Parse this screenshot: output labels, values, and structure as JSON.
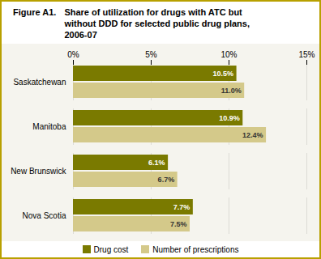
{
  "chart_data": {
    "type": "bar",
    "orientation": "horizontal",
    "title": "Figure A1.",
    "subtitle": "Share of utilization for drugs with ATC but\nwithout DDD for selected public drug plans,\n2006-07",
    "categories": [
      "Saskatchewan",
      "Manitoba",
      "New Brunswick",
      "Nova Scotia"
    ],
    "series": [
      {
        "name": "Drug cost",
        "color": "#7a7a00",
        "values": [
          10.5,
          10.9,
          6.1,
          7.7
        ],
        "value_labels": [
          "10.5%",
          "10.9%",
          "6.1%",
          "7.7%"
        ]
      },
      {
        "name": "Number of prescriptions",
        "color": "#d4c98a",
        "values": [
          11.0,
          12.4,
          6.7,
          7.5
        ],
        "value_labels": [
          "11.0%",
          "12.4%",
          "6.7%",
          "7.5%"
        ]
      }
    ],
    "xlim": [
      0,
      15
    ],
    "xticks": [
      {
        "value": 0,
        "label": "0%"
      },
      {
        "value": 5,
        "label": "5%"
      },
      {
        "value": 10,
        "label": "10%"
      },
      {
        "value": 15,
        "label": "15%"
      }
    ],
    "grid": true,
    "data_labels": true,
    "legend": "bottom"
  }
}
